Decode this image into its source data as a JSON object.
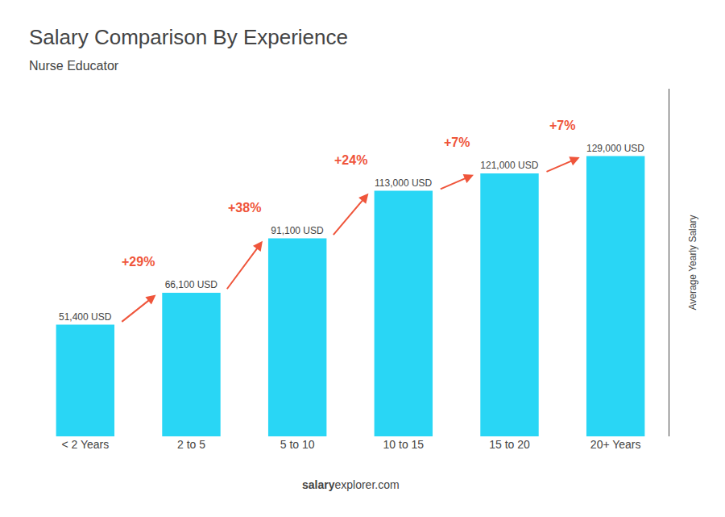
{
  "chart_data": {
    "type": "bar",
    "title": "Salary Comparison By Experience",
    "subtitle": "Nurse Educator",
    "categories": [
      "< 2 Years",
      "2 to 5",
      "5 to 10",
      "10 to 15",
      "15 to 20",
      "20+ Years"
    ],
    "values": [
      51400,
      66100,
      91100,
      113000,
      121000,
      129000
    ],
    "value_labels": [
      "51,400 USD",
      "66,100 USD",
      "91,100 USD",
      "113,000 USD",
      "121,000 USD",
      "129,000 USD"
    ],
    "data_labels": true,
    "annotations": [
      "+29%",
      "+38%",
      "+24%",
      "+7%",
      "+7%"
    ],
    "color": "#29d6f5",
    "ylabel": "Average Yearly Salary",
    "footer": [
      "salary",
      "explorer.com"
    ],
    "ylim": [
      0,
      160000
    ],
    "yticks": [],
    "tick_labels": "x",
    "grid": false
  }
}
